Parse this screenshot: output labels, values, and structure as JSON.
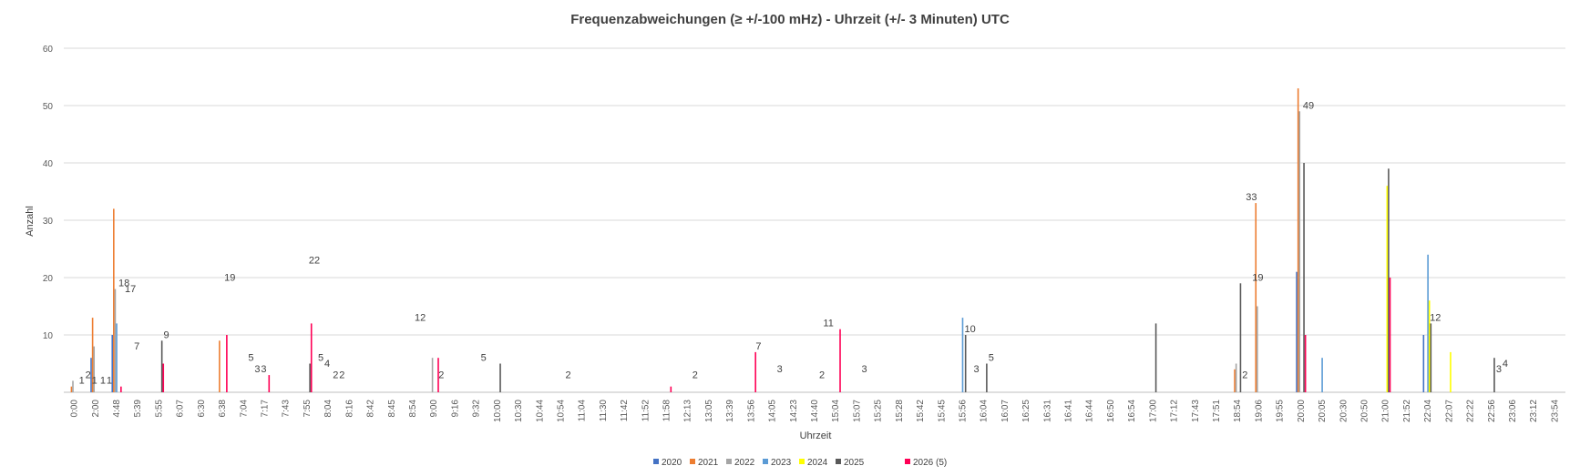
{
  "chart_data": {
    "type": "bar",
    "title": "Frequenzabweichungen (≥ +/-100 mHz) - Uhrzeit (+/- 3  Minuten) UTC",
    "xlabel": "Uhrzeit",
    "ylabel": "Anzahl",
    "ylim": [
      0,
      60
    ],
    "yticks": [
      0,
      10,
      20,
      30,
      40,
      50,
      60
    ],
    "grid": true,
    "legend_position": "bottom",
    "x_tick_labels": [
      "0:00",
      "2:00",
      "4:48",
      "5:39",
      "5:55",
      "6:07",
      "6:30",
      "6:38",
      "7:04",
      "7:17",
      "7:43",
      "7:55",
      "8:04",
      "8:16",
      "8:42",
      "8:45",
      "8:54",
      "9:00",
      "9:16",
      "9:32",
      "10:00",
      "10:30",
      "10:44",
      "10:54",
      "11:04",
      "11:30",
      "11:42",
      "11:52",
      "11:58",
      "12:13",
      "13:05",
      "13:39",
      "13:56",
      "14:05",
      "14:23",
      "14:40",
      "15:04",
      "15:07",
      "15:25",
      "15:28",
      "15:42",
      "15:45",
      "15:56",
      "16:04",
      "16:07",
      "16:25",
      "16:31",
      "16:41",
      "16:44",
      "16:50",
      "16:54",
      "17:00",
      "17:12",
      "17:43",
      "17:51",
      "18:54",
      "19:06",
      "19:55",
      "20:00",
      "20:05",
      "20:30",
      "20:50",
      "21:00",
      "21:52",
      "22:04",
      "22:07",
      "22:22",
      "22:56",
      "23:06",
      "23:12",
      "23:54"
    ],
    "series": [
      {
        "name": "2020",
        "color": "#4472C4",
        "values": [
          0,
          6,
          10,
          0,
          0,
          0,
          0,
          0,
          0,
          0,
          0,
          0,
          0,
          0,
          0,
          0,
          0,
          0,
          0,
          0,
          0,
          0,
          0,
          0,
          0,
          0,
          0,
          0,
          0,
          0,
          0,
          0,
          0,
          0,
          0,
          0,
          0,
          0,
          0,
          0,
          0,
          0,
          0,
          0,
          0,
          0,
          0,
          0,
          0,
          0,
          0,
          0,
          0,
          0,
          0,
          0,
          0,
          0,
          21,
          0,
          0,
          0,
          0,
          0,
          10,
          0,
          0,
          0,
          0,
          0,
          0
        ]
      },
      {
        "name": "2021",
        "color": "#ED7D31",
        "values": [
          1,
          13,
          32,
          0,
          0,
          0,
          0,
          9,
          0,
          0,
          0,
          0,
          0,
          0,
          0,
          0,
          0,
          0,
          0,
          0,
          0,
          0,
          0,
          0,
          0,
          0,
          0,
          0,
          0,
          0,
          0,
          0,
          0,
          0,
          0,
          0,
          0,
          0,
          0,
          0,
          0,
          0,
          0,
          0,
          0,
          0,
          0,
          0,
          0,
          0,
          0,
          0,
          0,
          0,
          0,
          4,
          33,
          0,
          53,
          0,
          0,
          0,
          0,
          0,
          0,
          0,
          0,
          0,
          0,
          0,
          0
        ]
      },
      {
        "name": "2022",
        "color": "#A5A5A5",
        "values": [
          2,
          8,
          18,
          0,
          0,
          0,
          0,
          0,
          0,
          0,
          0,
          0,
          0,
          0,
          0,
          0,
          0,
          6,
          0,
          0,
          0,
          0,
          0,
          0,
          0,
          0,
          0,
          0,
          0,
          0,
          0,
          0,
          0,
          0,
          0,
          0,
          0,
          0,
          0,
          0,
          0,
          0,
          0,
          0,
          0,
          0,
          0,
          0,
          0,
          0,
          0,
          0,
          0,
          0,
          0,
          5,
          15,
          0,
          49,
          0,
          0,
          0,
          0,
          0,
          0,
          0,
          0,
          0,
          0,
          0,
          0
        ]
      },
      {
        "name": "2023",
        "color": "#5B9BD5",
        "values": [
          0,
          0,
          12,
          0,
          0,
          0,
          0,
          0,
          0,
          0,
          0,
          0,
          0,
          0,
          0,
          0,
          0,
          0,
          0,
          0,
          0,
          0,
          0,
          0,
          0,
          0,
          0,
          0,
          0,
          0,
          0,
          0,
          0,
          0,
          0,
          0,
          0,
          0,
          0,
          0,
          0,
          0,
          13,
          0,
          0,
          0,
          0,
          0,
          0,
          0,
          0,
          0,
          0,
          0,
          0,
          0,
          0,
          0,
          0,
          6,
          0,
          0,
          0,
          0,
          24,
          0,
          0,
          0,
          0,
          0,
          0
        ]
      },
      {
        "name": "2024",
        "color": "#FFFF00",
        "values": [
          0,
          0,
          0,
          0,
          0,
          0,
          0,
          0,
          0,
          0,
          0,
          0,
          0,
          0,
          0,
          0,
          0,
          0,
          0,
          0,
          0,
          0,
          0,
          0,
          0,
          0,
          0,
          0,
          0,
          0,
          0,
          0,
          0,
          0,
          0,
          0,
          0,
          0,
          0,
          0,
          0,
          0,
          0,
          0,
          0,
          0,
          0,
          0,
          0,
          0,
          0,
          0,
          0,
          0,
          0,
          0,
          0,
          0,
          0,
          0,
          0,
          0,
          36,
          0,
          16,
          7,
          0,
          0,
          0,
          0,
          0
        ]
      },
      {
        "name": "2025",
        "color": "#595959",
        "values": [
          0,
          0,
          0,
          0,
          9,
          0,
          0,
          0,
          0,
          0,
          0,
          5,
          0,
          0,
          0,
          0,
          0,
          0,
          0,
          0,
          5,
          0,
          0,
          0,
          0,
          0,
          0,
          0,
          0,
          0,
          0,
          0,
          0,
          0,
          0,
          0,
          0,
          0,
          0,
          0,
          0,
          0,
          10,
          5,
          0,
          0,
          0,
          0,
          0,
          0,
          0,
          12,
          0,
          0,
          0,
          19,
          0,
          0,
          40,
          0,
          0,
          0,
          39,
          0,
          12,
          0,
          0,
          6,
          0,
          0,
          0
        ]
      },
      {
        "name": "2026 (5)",
        "color": "#FF0055",
        "values": [
          0,
          0,
          1,
          0,
          5,
          0,
          0,
          10,
          0,
          3,
          0,
          12,
          0,
          0,
          0,
          0,
          0,
          6,
          0,
          0,
          0,
          0,
          0,
          0,
          0,
          0,
          0,
          0,
          1,
          0,
          0,
          0,
          7,
          0,
          0,
          0,
          11,
          0,
          0,
          0,
          0,
          0,
          0,
          0,
          0,
          0,
          0,
          0,
          0,
          0,
          0,
          0,
          0,
          0,
          0,
          0,
          0,
          0,
          10,
          0,
          0,
          0,
          20,
          0,
          0,
          0,
          0,
          0,
          0,
          0,
          0
        ]
      }
    ],
    "data_labels": [
      {
        "after": "0:00",
        "text": "1"
      },
      {
        "after": "0:00",
        "text": "2"
      },
      {
        "after": "0:00",
        "text": "1"
      },
      {
        "after": "2:00",
        "text": "1"
      },
      {
        "after": "2:00",
        "text": "1"
      },
      {
        "after": "4:48",
        "text": "18"
      },
      {
        "after": "4:48",
        "text": "17"
      },
      {
        "after": "4:48",
        "text": "7"
      },
      {
        "after": "5:55",
        "text": "9"
      },
      {
        "after": "6:38",
        "text": "19"
      },
      {
        "after": "7:04",
        "text": "5"
      },
      {
        "after": "7:04",
        "text": "3"
      },
      {
        "after": "7:04",
        "text": "3"
      },
      {
        "after": "7:55",
        "text": "22"
      },
      {
        "after": "7:55",
        "text": "5"
      },
      {
        "after": "7:55",
        "text": "4"
      },
      {
        "after": "8:04",
        "text": "2"
      },
      {
        "after": "8:04",
        "text": "2"
      },
      {
        "after": "8:54",
        "text": "12"
      },
      {
        "after": "9:00",
        "text": "2"
      },
      {
        "after": "9:32",
        "text": "5"
      },
      {
        "after": "10:54",
        "text": "2"
      },
      {
        "after": "12:13",
        "text": "2"
      },
      {
        "after": "13:56",
        "text": "7"
      },
      {
        "after": "14:05",
        "text": "3"
      },
      {
        "after": "14:40",
        "text": "2"
      },
      {
        "after": "14:40",
        "text": "11"
      },
      {
        "after": "15:07",
        "text": "3"
      },
      {
        "after": "15:56",
        "text": "10"
      },
      {
        "after": "15:56",
        "text": "3"
      },
      {
        "after": "16:04",
        "text": "5"
      },
      {
        "after": "18:54",
        "text": "2"
      },
      {
        "after": "18:54",
        "text": "33"
      },
      {
        "after": "18:54",
        "text": "19"
      },
      {
        "after": "20:00",
        "text": "49"
      },
      {
        "after": "22:04",
        "text": "12"
      },
      {
        "after": "22:56",
        "text": "3"
      },
      {
        "after": "22:56",
        "text": "4"
      }
    ]
  }
}
